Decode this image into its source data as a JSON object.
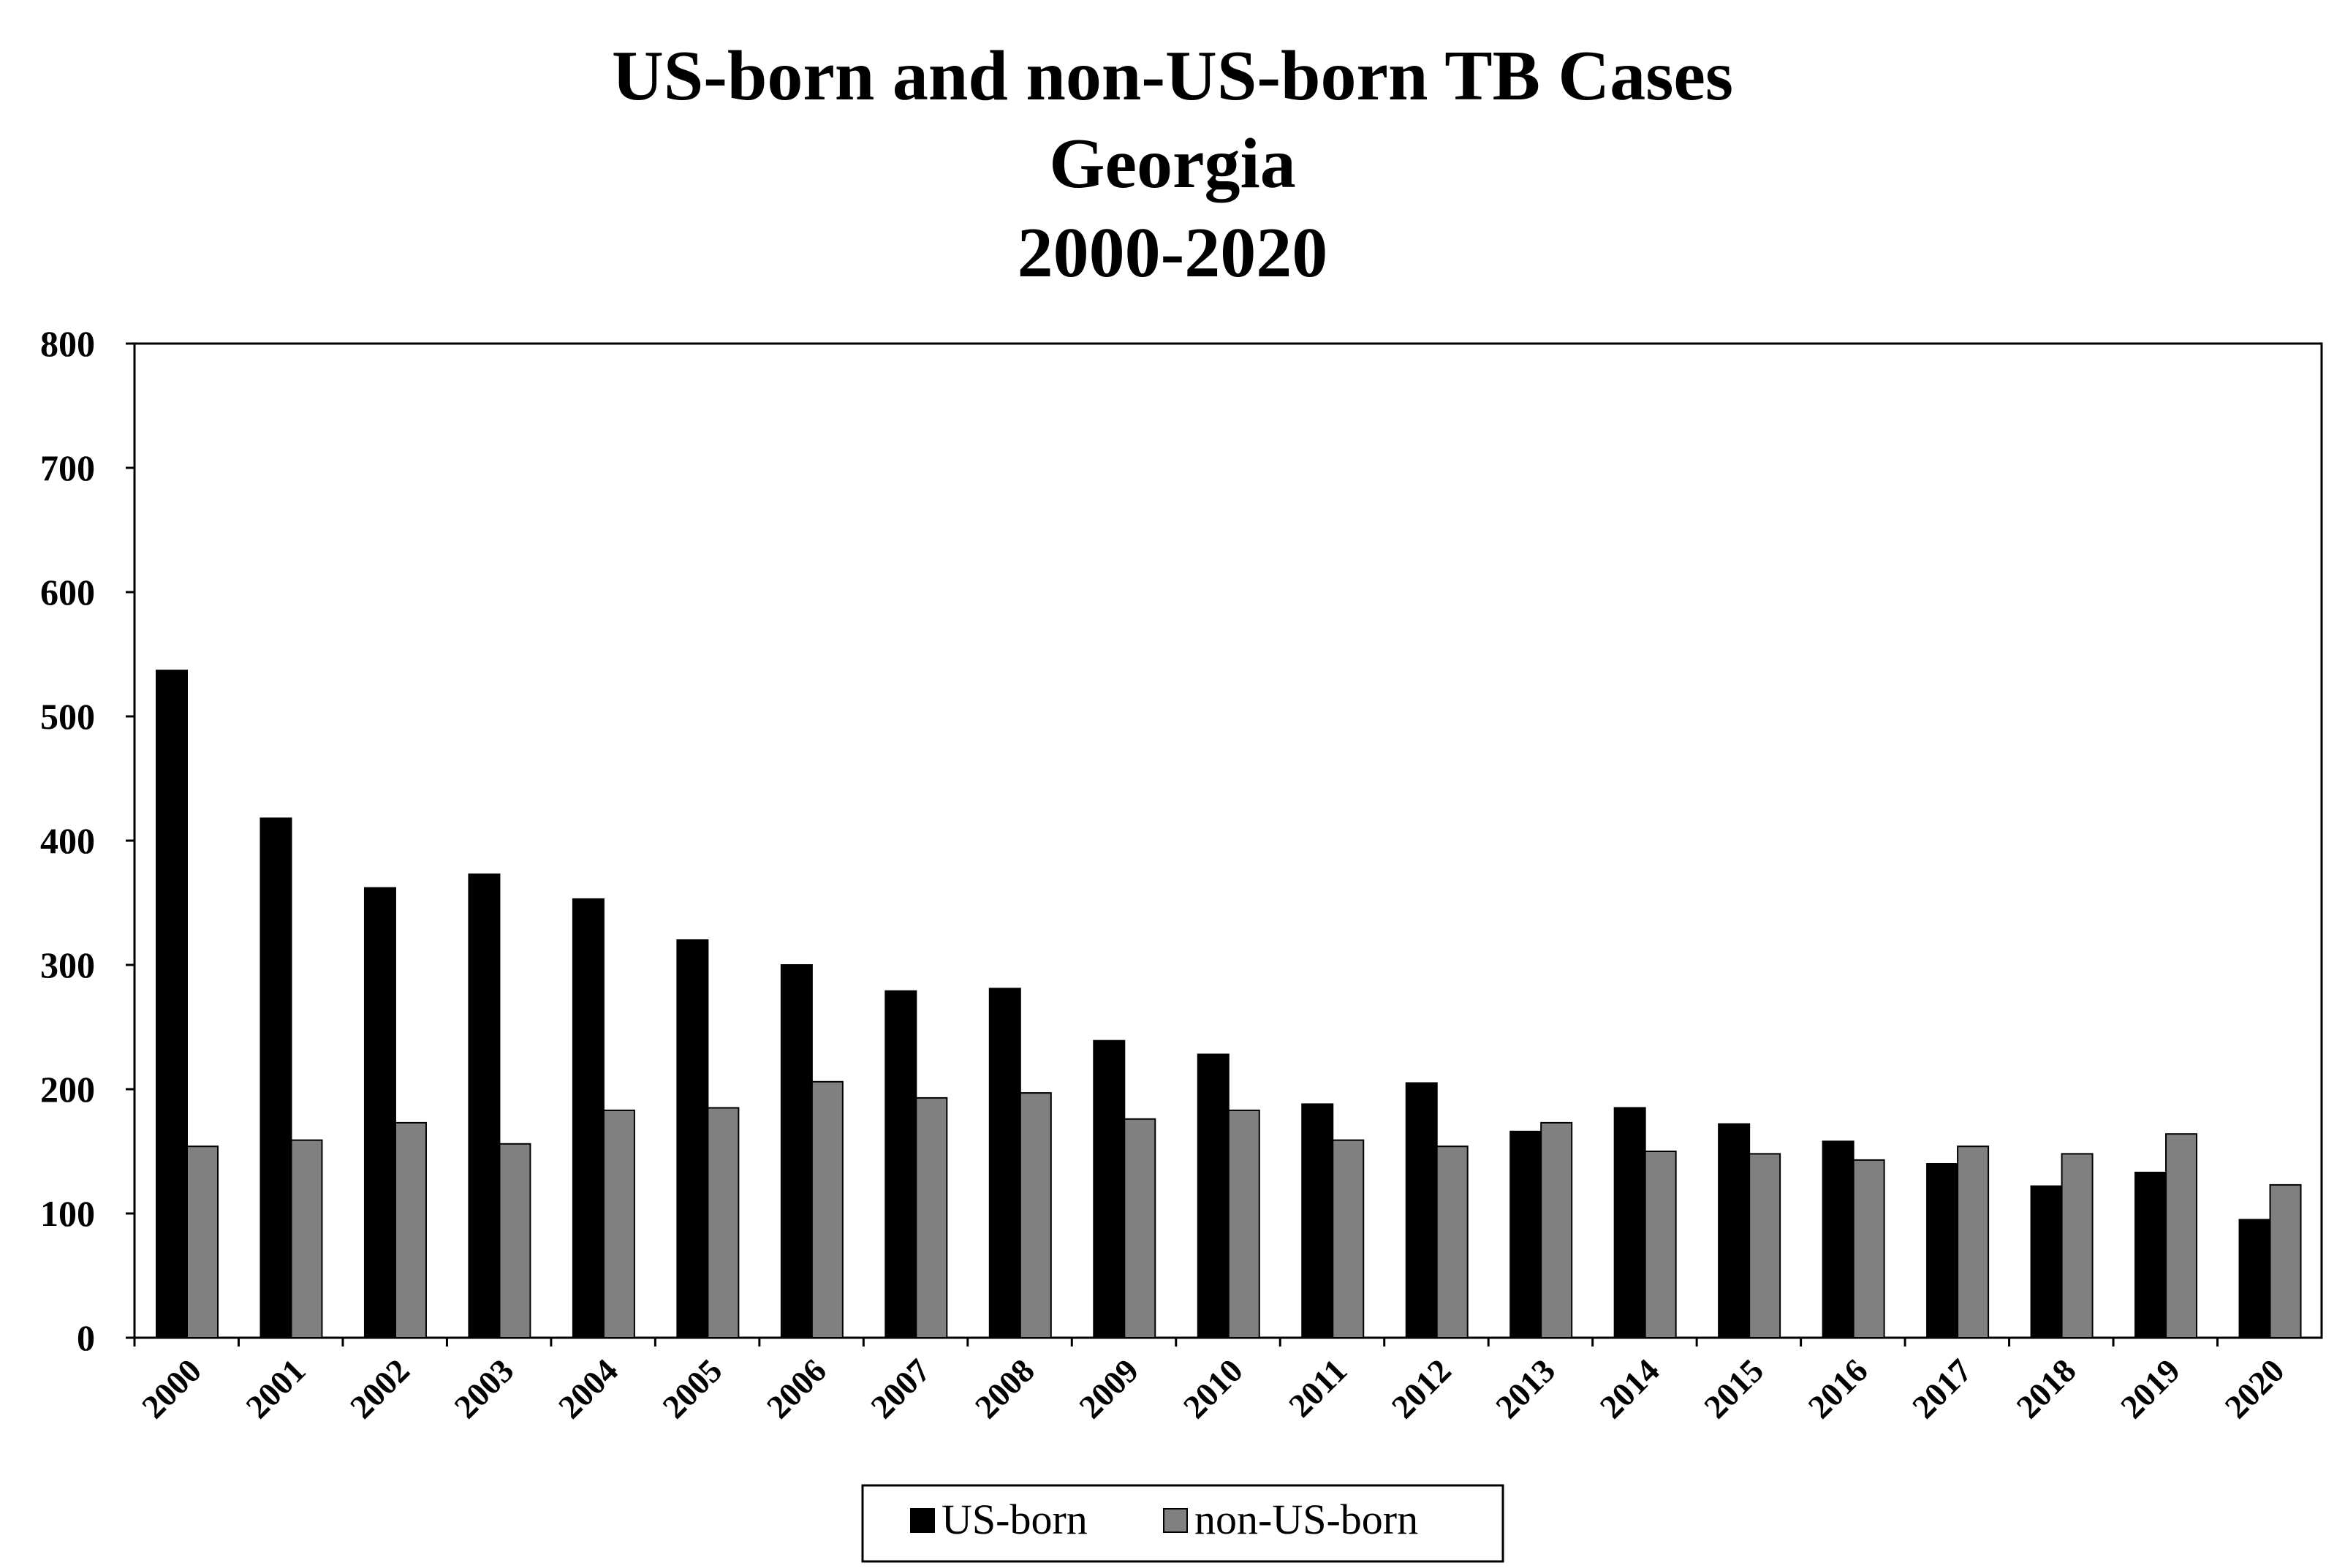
{
  "chart_data": {
    "type": "bar",
    "title_lines": [
      "US-born and non-US-born TB Cases",
      "Georgia",
      "2000-2020"
    ],
    "categories": [
      "2000",
      "2001",
      "2002",
      "2003",
      "2004",
      "2005",
      "2006",
      "2007",
      "2008",
      "2009",
      "2010",
      "2011",
      "2012",
      "2013",
      "2014",
      "2015",
      "2016",
      "2017",
      "2018",
      "2019",
      "2020"
    ],
    "series": [
      {
        "name": "US-born",
        "color": "#000000",
        "values": [
          537,
          418,
          362,
          373,
          353,
          320,
          300,
          279,
          281,
          239,
          228,
          188,
          205,
          166,
          185,
          172,
          158,
          140,
          122,
          133,
          95
        ]
      },
      {
        "name": "non-US-born",
        "color": "#808080",
        "values": [
          154,
          159,
          173,
          156,
          183,
          185,
          206,
          193,
          197,
          176,
          183,
          159,
          154,
          173,
          150,
          148,
          143,
          154,
          148,
          164,
          123
        ]
      }
    ],
    "yticks": [
      "0",
      "100",
      "200",
      "300",
      "400",
      "500",
      "600",
      "700",
      "800"
    ],
    "ylim": [
      0,
      800
    ],
    "xlabel": "",
    "ylabel": "",
    "grid": false,
    "legend_position": "bottom-center"
  }
}
